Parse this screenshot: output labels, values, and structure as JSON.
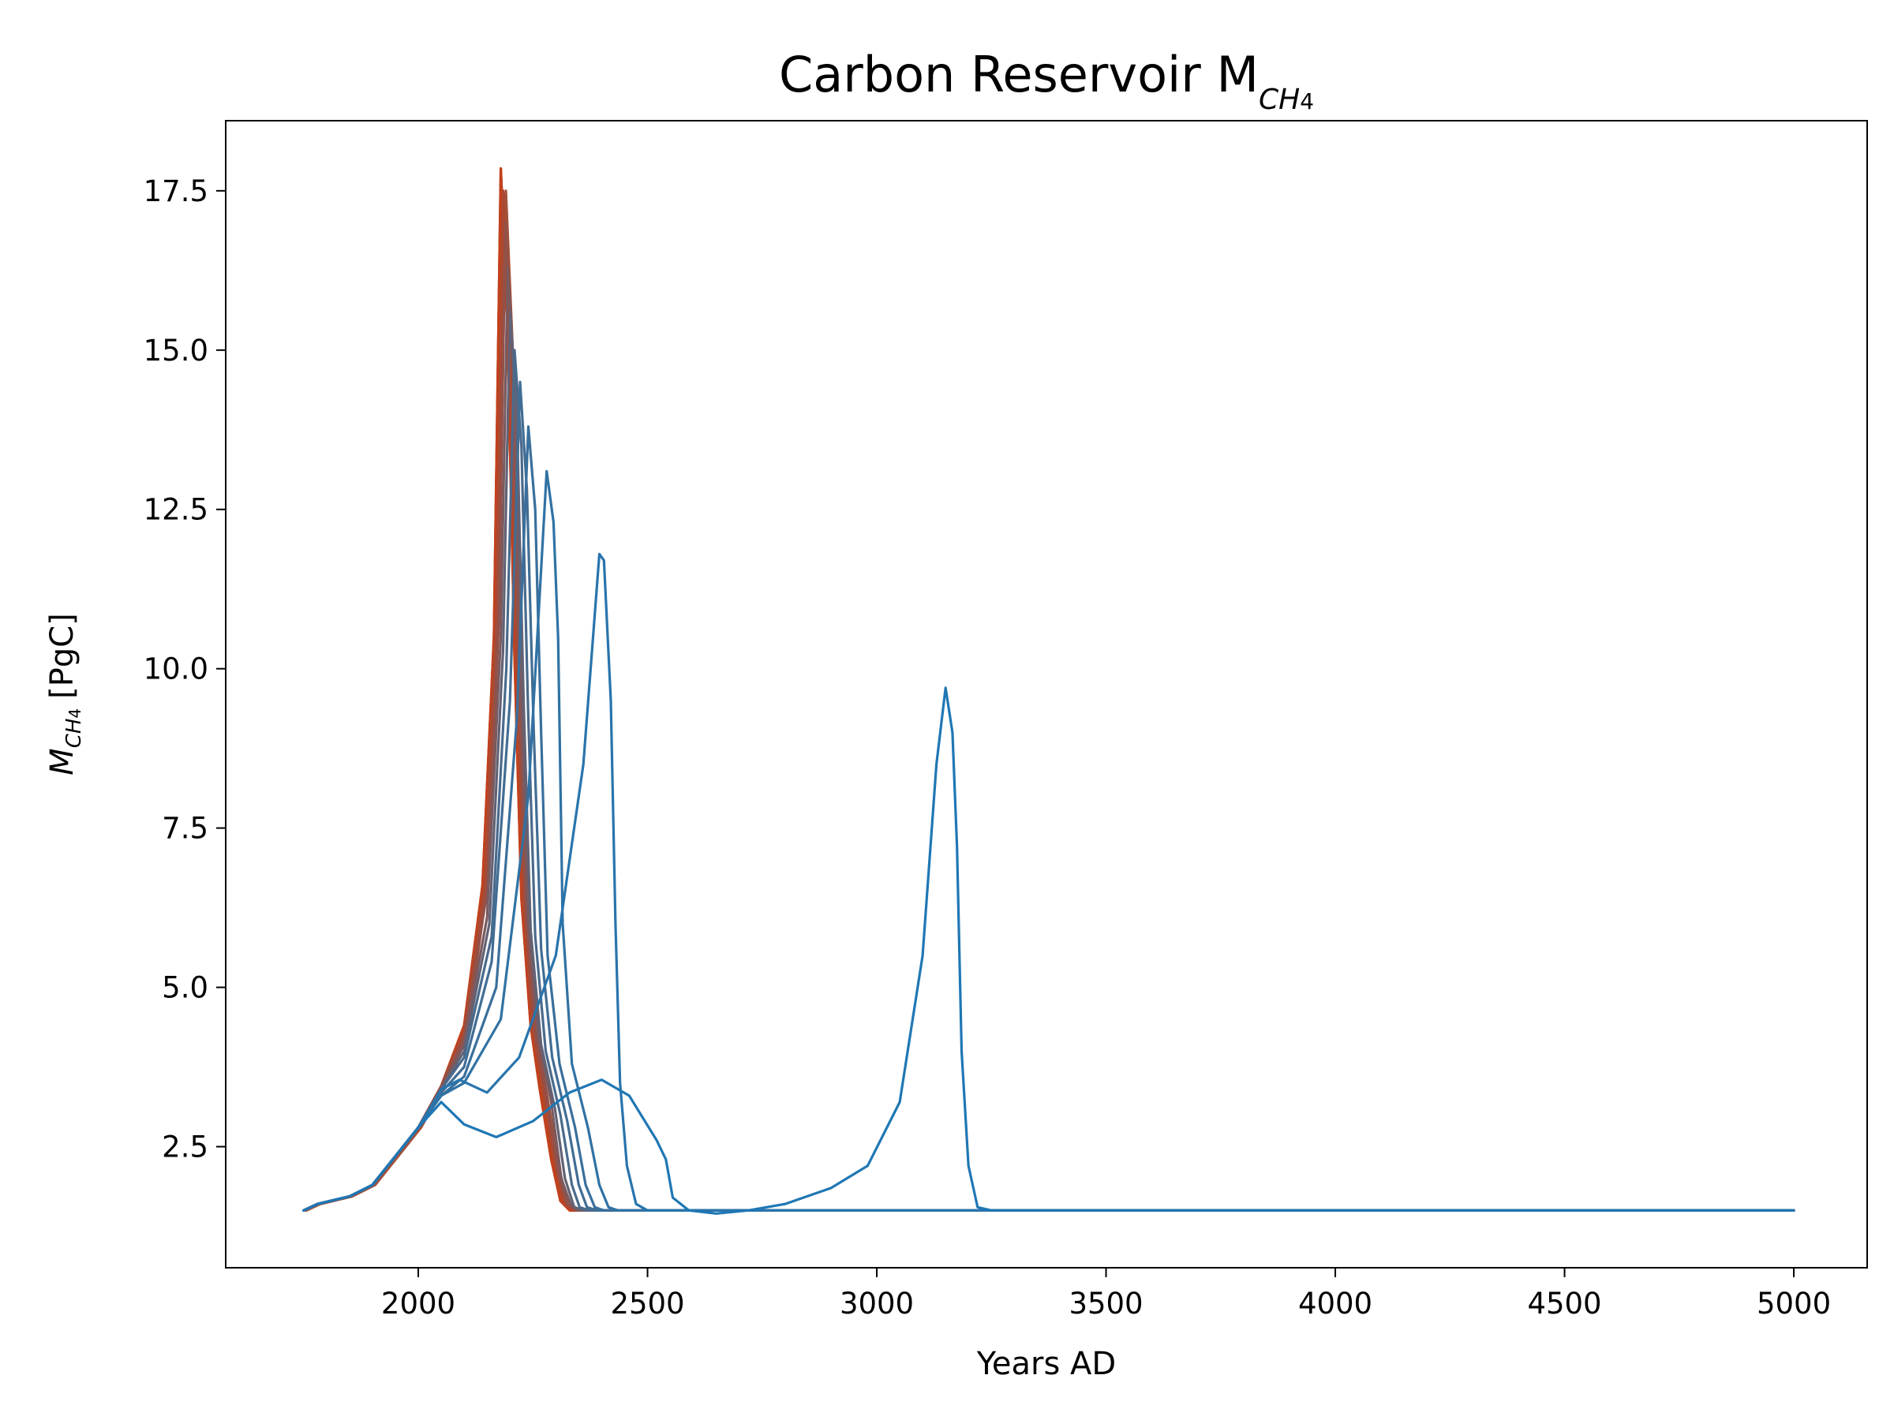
{
  "chart_data": {
    "type": "line",
    "title": "Carbon Reservoir M",
    "title_sub": "CH",
    "title_sub2": "4",
    "xlabel": "Years AD",
    "ylabel": "M",
    "ylabel_sub": "CH",
    "ylabel_sub2": "4",
    "ylabel_unit": "[PgC]",
    "xlim": [
      1580,
      5160
    ],
    "ylim": [
      0.6,
      18.6
    ],
    "xticks": [
      "2000",
      "2500",
      "3000",
      "3500",
      "4000",
      "4500",
      "5000"
    ],
    "yticks": [
      "2.5",
      "5.0",
      "7.5",
      "10.0",
      "12.5",
      "15.0",
      "17.5"
    ],
    "grid": false,
    "legend": "none",
    "colors": {
      "red_end": "#c2411c",
      "blue_end": "#1f77b4",
      "mid": "#4a6a8c"
    },
    "ensemble_note": "dense ensemble of runs fading red→blue",
    "series": [
      {
        "values": [
          [
            1750,
            1.5
          ],
          [
            1780,
            1.6
          ],
          [
            1850,
            1.72
          ],
          [
            1900,
            1.9
          ],
          [
            1950,
            2.35
          ],
          [
            2000,
            2.8
          ],
          [
            2050,
            3.45
          ],
          [
            2100,
            4.4
          ],
          [
            2140,
            6.6
          ],
          [
            2165,
            10.5
          ],
          [
            2180,
            17.85
          ],
          [
            2195,
            15.2
          ],
          [
            2210,
            10.2
          ],
          [
            2225,
            6.4
          ],
          [
            2245,
            4.4
          ],
          [
            2265,
            3.4
          ],
          [
            2290,
            2.3
          ],
          [
            2310,
            1.65
          ],
          [
            2330,
            1.5
          ],
          [
            5000,
            1.5
          ]
        ]
      },
      {
        "values": [
          [
            1750,
            1.5
          ],
          [
            1780,
            1.6
          ],
          [
            1850,
            1.72
          ],
          [
            1900,
            1.9
          ],
          [
            1950,
            2.35
          ],
          [
            2000,
            2.8
          ],
          [
            2050,
            3.45
          ],
          [
            2100,
            4.3
          ],
          [
            2145,
            6.6
          ],
          [
            2170,
            10.8
          ],
          [
            2185,
            17.5
          ],
          [
            2200,
            15.0
          ],
          [
            2215,
            10.0
          ],
          [
            2230,
            6.3
          ],
          [
            2250,
            4.3
          ],
          [
            2275,
            3.3
          ],
          [
            2300,
            2.2
          ],
          [
            2320,
            1.6
          ],
          [
            2340,
            1.5
          ],
          [
            5000,
            1.5
          ]
        ]
      },
      {
        "values": [
          [
            1750,
            1.5
          ],
          [
            1780,
            1.6
          ],
          [
            1850,
            1.72
          ],
          [
            1900,
            1.9
          ],
          [
            1950,
            2.35
          ],
          [
            2000,
            2.8
          ],
          [
            2050,
            3.45
          ],
          [
            2100,
            4.2
          ],
          [
            2150,
            6.5
          ],
          [
            2175,
            10.8
          ],
          [
            2190,
            17.0
          ],
          [
            2205,
            14.8
          ],
          [
            2220,
            9.8
          ],
          [
            2235,
            6.2
          ],
          [
            2255,
            4.3
          ],
          [
            2280,
            3.3
          ],
          [
            2305,
            2.1
          ],
          [
            2325,
            1.6
          ],
          [
            2345,
            1.5
          ],
          [
            5000,
            1.5
          ]
        ]
      },
      {
        "values": [
          [
            1750,
            1.5
          ],
          [
            1780,
            1.6
          ],
          [
            1850,
            1.72
          ],
          [
            1900,
            1.9
          ],
          [
            1950,
            2.35
          ],
          [
            2000,
            2.8
          ],
          [
            2050,
            3.4
          ],
          [
            2100,
            4.1
          ],
          [
            2150,
            6.1
          ],
          [
            2180,
            10.5
          ],
          [
            2195,
            16.3
          ],
          [
            2210,
            14.5
          ],
          [
            2225,
            9.6
          ],
          [
            2240,
            6.0
          ],
          [
            2262,
            4.2
          ],
          [
            2290,
            3.2
          ],
          [
            2312,
            2.0
          ],
          [
            2332,
            1.6
          ],
          [
            2352,
            1.5
          ],
          [
            5000,
            1.5
          ]
        ]
      },
      {
        "values": [
          [
            1750,
            1.5
          ],
          [
            1780,
            1.6
          ],
          [
            1850,
            1.72
          ],
          [
            1900,
            1.9
          ],
          [
            1950,
            2.35
          ],
          [
            2000,
            2.8
          ],
          [
            2050,
            3.4
          ],
          [
            2100,
            4.0
          ],
          [
            2155,
            6.0
          ],
          [
            2185,
            10.3
          ],
          [
            2200,
            15.6
          ],
          [
            2215,
            14.0
          ],
          [
            2230,
            9.4
          ],
          [
            2245,
            5.9
          ],
          [
            2268,
            4.1
          ],
          [
            2298,
            3.1
          ],
          [
            2320,
            2.0
          ],
          [
            2340,
            1.55
          ],
          [
            2360,
            1.5
          ],
          [
            5000,
            1.5
          ]
        ]
      },
      {
        "values": [
          [
            1750,
            1.5
          ],
          [
            1780,
            1.6
          ],
          [
            1850,
            1.72
          ],
          [
            1900,
            1.9
          ],
          [
            1950,
            2.35
          ],
          [
            2000,
            2.8
          ],
          [
            2050,
            3.4
          ],
          [
            2100,
            3.9
          ],
          [
            2160,
            5.8
          ],
          [
            2192,
            10.0
          ],
          [
            2210,
            15.0
          ],
          [
            2225,
            13.5
          ],
          [
            2240,
            9.2
          ],
          [
            2255,
            5.8
          ],
          [
            2278,
            4.0
          ],
          [
            2310,
            3.0
          ],
          [
            2335,
            1.9
          ],
          [
            2352,
            1.55
          ],
          [
            2372,
            1.5
          ],
          [
            5000,
            1.5
          ]
        ]
      },
      {
        "values": [
          [
            1750,
            1.5
          ],
          [
            1780,
            1.6
          ],
          [
            1850,
            1.72
          ],
          [
            1900,
            1.9
          ],
          [
            1950,
            2.35
          ],
          [
            2000,
            2.8
          ],
          [
            2050,
            3.35
          ],
          [
            2100,
            3.75
          ],
          [
            2160,
            5.4
          ],
          [
            2200,
            9.5
          ],
          [
            2222,
            14.5
          ],
          [
            2237,
            12.8
          ],
          [
            2252,
            9.0
          ],
          [
            2268,
            5.6
          ],
          [
            2292,
            3.9
          ],
          [
            2325,
            2.9
          ],
          [
            2350,
            1.9
          ],
          [
            2368,
            1.55
          ],
          [
            2390,
            1.5
          ],
          [
            5000,
            1.5
          ]
        ]
      },
      {
        "values": [
          [
            1750,
            1.5
          ],
          [
            1780,
            1.6
          ],
          [
            1850,
            1.72
          ],
          [
            1900,
            1.9
          ],
          [
            1950,
            2.35
          ],
          [
            2000,
            2.8
          ],
          [
            2050,
            3.3
          ],
          [
            2100,
            3.6
          ],
          [
            2170,
            5.0
          ],
          [
            2215,
            9.2
          ],
          [
            2240,
            13.8
          ],
          [
            2255,
            12.5
          ],
          [
            2268,
            9.0
          ],
          [
            2282,
            5.5
          ],
          [
            2308,
            3.8
          ],
          [
            2342,
            2.8
          ],
          [
            2365,
            1.9
          ],
          [
            2385,
            1.55
          ],
          [
            2405,
            1.5
          ],
          [
            5000,
            1.5
          ]
        ]
      },
      {
        "values": [
          [
            1750,
            1.5
          ],
          [
            1780,
            1.6
          ],
          [
            1850,
            1.72
          ],
          [
            1900,
            1.9
          ],
          [
            1950,
            2.35
          ],
          [
            2000,
            2.8
          ],
          [
            2050,
            3.3
          ],
          [
            2100,
            3.5
          ],
          [
            2180,
            4.5
          ],
          [
            2240,
            8.0
          ],
          [
            2280,
            13.1
          ],
          [
            2295,
            12.3
          ],
          [
            2305,
            10.5
          ],
          [
            2315,
            6.0
          ],
          [
            2335,
            3.8
          ],
          [
            2370,
            2.8
          ],
          [
            2395,
            1.9
          ],
          [
            2415,
            1.55
          ],
          [
            2435,
            1.5
          ],
          [
            5000,
            1.5
          ]
        ]
      },
      {
        "values": [
          [
            1750,
            1.5
          ],
          [
            1780,
            1.6
          ],
          [
            1850,
            1.72
          ],
          [
            1900,
            1.9
          ],
          [
            1950,
            2.35
          ],
          [
            2000,
            2.8
          ],
          [
            2050,
            3.4
          ],
          [
            2090,
            3.55
          ],
          [
            2150,
            3.35
          ],
          [
            2220,
            3.9
          ],
          [
            2300,
            5.5
          ],
          [
            2360,
            8.5
          ],
          [
            2395,
            11.8
          ],
          [
            2405,
            11.7
          ],
          [
            2420,
            9.5
          ],
          [
            2430,
            6.0
          ],
          [
            2440,
            3.5
          ],
          [
            2455,
            2.2
          ],
          [
            2475,
            1.6
          ],
          [
            2500,
            1.5
          ],
          [
            5000,
            1.5
          ]
        ]
      },
      {
        "values": [
          [
            1750,
            1.5
          ],
          [
            1780,
            1.6
          ],
          [
            1850,
            1.72
          ],
          [
            1900,
            1.9
          ],
          [
            1950,
            2.35
          ],
          [
            2000,
            2.8
          ],
          [
            2050,
            3.2
          ],
          [
            2100,
            2.85
          ],
          [
            2170,
            2.65
          ],
          [
            2250,
            2.9
          ],
          [
            2330,
            3.35
          ],
          [
            2400,
            3.55
          ],
          [
            2460,
            3.3
          ],
          [
            2520,
            2.6
          ],
          [
            2540,
            2.3
          ],
          [
            2555,
            1.7
          ],
          [
            2590,
            1.5
          ],
          [
            2650,
            1.45
          ],
          [
            2720,
            1.5
          ],
          [
            2800,
            1.6
          ],
          [
            2900,
            1.85
          ],
          [
            2980,
            2.2
          ],
          [
            3050,
            3.2
          ],
          [
            3100,
            5.5
          ],
          [
            3130,
            8.5
          ],
          [
            3150,
            9.7
          ],
          [
            3165,
            9.0
          ],
          [
            3175,
            7.2
          ],
          [
            3185,
            4.0
          ],
          [
            3200,
            2.2
          ],
          [
            3220,
            1.55
          ],
          [
            3250,
            1.5
          ],
          [
            5000,
            1.5
          ]
        ]
      }
    ]
  }
}
